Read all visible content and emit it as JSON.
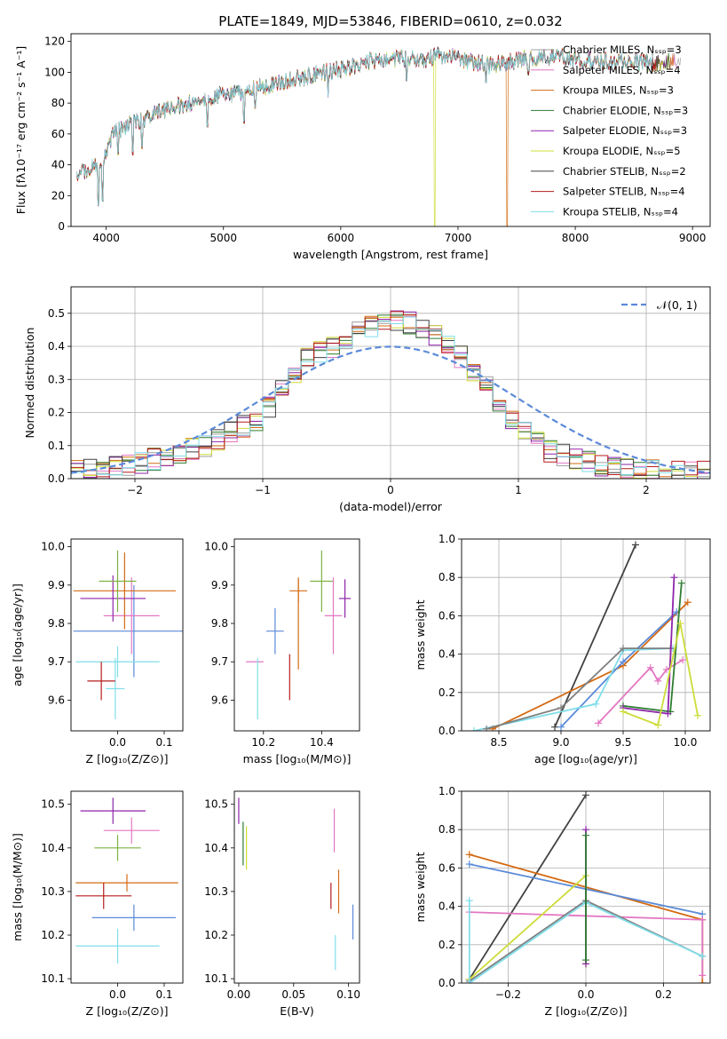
{
  "chart_data": [
    {
      "type": "line",
      "title": "PLATE=1849, MJD=53846, FIBERID=0610, z=0.032",
      "xlabel": "wavelength [Angstrom, rest frame]",
      "ylabel": "Flux [fλ10⁻¹⁷ erg cm⁻² s⁻¹ A⁻¹]",
      "xlim": [
        3700,
        9150
      ],
      "ylim": [
        0,
        125
      ],
      "xticks": [
        4000,
        5000,
        6000,
        7000,
        8000,
        9000
      ],
      "yticks": [
        0,
        20,
        40,
        60,
        80,
        100,
        120
      ],
      "legend_position": "upper right",
      "series": [
        {
          "name": "Chabrier MILES, Nₛₛₚ=3",
          "color": "#9e9e9e"
        },
        {
          "name": "Salpeter MILES, Nₛₛₚ=4",
          "color": "#e377c2"
        },
        {
          "name": "Kroupa MILES, Nₛₛₚ=3",
          "color": "#d46b14"
        },
        {
          "name": "Chabrier ELODIE, Nₛₛₚ=3",
          "color": "#2e7d32"
        },
        {
          "name": "Salpeter ELODIE, Nₛₛₚ=3",
          "color": "#8e24aa"
        },
        {
          "name": "Kroupa ELODIE, Nₛₛₚ=5",
          "color": "#cddc39"
        },
        {
          "name": "Chabrier STELIB, Nₛₛₚ=2",
          "color": "#424242"
        },
        {
          "name": "Salpeter STELIB, Nₛₛₚ=4",
          "color": "#b71c1c"
        },
        {
          "name": "Kroupa STELIB, Nₛₛₚ=4",
          "color": "#80deea"
        }
      ],
      "spectrum_anchor": {
        "x": [
          3750,
          3800,
          3850,
          3900,
          3950,
          4000,
          4050,
          4100,
          4150,
          4200,
          4300,
          4400,
          4500,
          4600,
          4700,
          4800,
          4900,
          5000,
          5100,
          5200,
          5300,
          5400,
          5500,
          5600,
          5700,
          5800,
          5900,
          6000,
          6100,
          6200,
          6300,
          6400,
          6500,
          6600,
          6700,
          6800,
          6900,
          7000,
          7100,
          7200,
          7300,
          7400,
          7500,
          7600,
          7700,
          7800,
          7900,
          8000,
          8100,
          8200,
          8300,
          8400,
          8500,
          8600,
          8700,
          8800,
          8900
        ],
        "y": [
          30,
          35,
          38,
          40,
          36,
          50,
          58,
          62,
          64,
          66,
          68,
          72,
          76,
          78,
          80,
          82,
          84,
          85,
          86,
          87,
          90,
          92,
          94,
          96,
          97,
          99,
          100,
          102,
          104,
          106,
          108,
          108,
          109,
          110,
          108,
          110,
          111,
          110,
          107,
          106,
          104,
          106,
          108,
          109,
          110,
          110,
          110,
          108,
          108,
          106,
          107,
          107,
          107,
          106,
          106,
          107,
          107
        ],
        "dips": [
          {
            "x": 3934,
            "y": 15
          },
          {
            "x": 3969,
            "y": 18
          },
          {
            "x": 4101,
            "y": 48
          },
          {
            "x": 4227,
            "y": 48
          },
          {
            "x": 4305,
            "y": 52
          },
          {
            "x": 4861,
            "y": 66
          },
          {
            "x": 5175,
            "y": 68
          },
          {
            "x": 5270,
            "y": 78
          },
          {
            "x": 5892,
            "y": 85
          },
          {
            "x": 6563,
            "y": 96
          },
          {
            "x": 6800,
            "y": 0
          },
          {
            "x": 7240,
            "y": 95
          },
          {
            "x": 7420,
            "y": 0
          },
          {
            "x": 7600,
            "y": 100
          }
        ]
      }
    },
    {
      "type": "bar",
      "xlabel": "(data-model)/error",
      "ylabel": "Normed distribution",
      "xlim": [
        -2.5,
        2.5
      ],
      "ylim": [
        0,
        0.58
      ],
      "xticks": [
        -2,
        -1,
        0,
        1,
        2
      ],
      "yticks": [
        0.0,
        0.1,
        0.2,
        0.3,
        0.4,
        0.5
      ],
      "legend": "𝒩(0, 1)",
      "legend_position": "upper right",
      "normal_curve": {
        "mean": 0,
        "sigma": 1,
        "color": "#5b8ad8"
      },
      "bin_width": 0.1,
      "colors": [
        "#9e9e9e",
        "#e377c2",
        "#d46b14",
        "#2e7d32",
        "#8e24aa",
        "#cddc39",
        "#424242",
        "#b71c1c",
        "#80deea"
      ],
      "histogram_base": [
        0.02,
        0.03,
        0.03,
        0.035,
        0.04,
        0.05,
        0.06,
        0.07,
        0.08,
        0.09,
        0.1,
        0.12,
        0.14,
        0.16,
        0.18,
        0.22,
        0.28,
        0.32,
        0.36,
        0.38,
        0.4,
        0.42,
        0.44,
        0.46,
        0.47,
        0.48,
        0.47,
        0.45,
        0.43,
        0.4,
        0.37,
        0.33,
        0.28,
        0.22,
        0.18,
        0.14,
        0.11,
        0.08,
        0.07,
        0.06,
        0.05,
        0.04,
        0.035,
        0.03,
        0.03,
        0.025,
        0.02,
        0.02,
        0.02,
        0.02
      ]
    },
    {
      "type": "scatter",
      "xlabel": "Z [log₁₀(Z/Z⊙)]",
      "ylabel": "age  [log₁₀(age/yr)]",
      "xlim": [
        -0.1,
        0.14
      ],
      "ylim": [
        9.52,
        10.02
      ],
      "xticks": [
        0.0,
        0.1
      ],
      "yticks": [
        9.6,
        9.7,
        9.8,
        9.9,
        10.0
      ],
      "points": [
        {
          "x": -0.005,
          "y": 9.63,
          "xerr": 0.02,
          "yerr": 0.08,
          "color": "#80deea"
        },
        {
          "x": 0.035,
          "y": 9.78,
          "xerr": 0.13,
          "yerr": 0.12,
          "color": "#5b8ad8"
        },
        {
          "x": 0.03,
          "y": 9.82,
          "xerr": 0.06,
          "yerr": 0.1,
          "color": "#e377c2"
        },
        {
          "x": 0.015,
          "y": 9.885,
          "xerr": 0.11,
          "yerr": 0.1,
          "color": "#d46b14"
        },
        {
          "x": -0.01,
          "y": 9.865,
          "xerr": 0.07,
          "yerr": 0.06,
          "color": "#8e24aa"
        },
        {
          "x": 0.0,
          "y": 9.91,
          "xerr": 0.04,
          "yerr": 0.08,
          "color": "#7cb342"
        },
        {
          "x": 0.0,
          "y": 9.7,
          "xerr": 0.09,
          "yerr": 0.04,
          "color": "#80deea"
        },
        {
          "x": -0.035,
          "y": 9.65,
          "xerr": 0.03,
          "yerr": 0.05,
          "color": "#b71c1c"
        }
      ]
    },
    {
      "type": "scatter",
      "xlabel": "mass [log₁₀(M/M⊙)]",
      "xlim": [
        10.1,
        10.53
      ],
      "ylim": [
        9.52,
        10.02
      ],
      "xticks": [
        10.2,
        10.4
      ],
      "yticks": [
        9.6,
        9.7,
        9.8,
        9.9,
        10.0
      ],
      "points": [
        {
          "x": 10.17,
          "y": 9.7,
          "xerr": 0.03,
          "yerr": 0.0,
          "color": "#e377c2"
        },
        {
          "x": 10.18,
          "y": 9.63,
          "xerr": 0.0,
          "yerr": 0.08,
          "color": "#80deea"
        },
        {
          "x": 10.24,
          "y": 9.78,
          "xerr": 0.03,
          "yerr": 0.06,
          "color": "#5b8ad8"
        },
        {
          "x": 10.29,
          "y": 9.66,
          "xerr": 0.0,
          "yerr": 0.06,
          "color": "#b71c1c"
        },
        {
          "x": 10.32,
          "y": 9.885,
          "xerr": 0.03,
          "yerr": 0.03,
          "color": "#d46b14"
        },
        {
          "x": 10.32,
          "y": 9.8,
          "xerr": 0.0,
          "yerr": 0.12,
          "color": "#d46b14"
        },
        {
          "x": 10.4,
          "y": 9.91,
          "xerr": 0.04,
          "yerr": 0.08,
          "color": "#7cb342"
        },
        {
          "x": 10.44,
          "y": 9.82,
          "xerr": 0.03,
          "yerr": 0.1,
          "color": "#e377c2"
        },
        {
          "x": 10.48,
          "y": 9.865,
          "xerr": 0.02,
          "yerr": 0.05,
          "color": "#8e24aa"
        }
      ]
    },
    {
      "type": "line",
      "xlabel": "age  [log₁₀(age/yr)]",
      "ylabel": "mass weight",
      "xlim": [
        8.2,
        10.2
      ],
      "ylim": [
        0,
        1
      ],
      "xticks": [
        8.5,
        9.0,
        9.5,
        10.0
      ],
      "yticks": [
        0.0,
        0.2,
        0.4,
        0.6,
        0.8,
        1.0
      ],
      "series": [
        {
          "color": "#424242",
          "x": [
            8.95,
            9.6
          ],
          "y": [
            0.02,
            0.97
          ]
        },
        {
          "color": "#d46b14",
          "x": [
            8.45,
            9.5,
            10.02
          ],
          "y": [
            0.01,
            0.34,
            0.67
          ]
        },
        {
          "color": "#5b8ad8",
          "x": [
            9.0,
            9.5,
            9.93
          ],
          "y": [
            0.02,
            0.36,
            0.62
          ]
        },
        {
          "color": "#80deea",
          "x": [
            8.3,
            9.28,
            9.5,
            9.9
          ],
          "y": [
            0.0,
            0.14,
            0.42,
            0.43
          ]
        },
        {
          "color": "#7f7f7f",
          "x": [
            8.4,
            9.0,
            9.5,
            9.88
          ],
          "y": [
            0.01,
            0.12,
            0.43,
            0.43
          ]
        },
        {
          "color": "#e377c2",
          "x": [
            9.3,
            9.72,
            9.78,
            9.85,
            9.98
          ],
          "y": [
            0.04,
            0.33,
            0.26,
            0.32,
            0.37
          ]
        },
        {
          "color": "#2e7d32",
          "x": [
            9.5,
            9.88,
            9.97
          ],
          "y": [
            0.13,
            0.1,
            0.77
          ]
        },
        {
          "color": "#8e24aa",
          "x": [
            9.5,
            9.86,
            9.91
          ],
          "y": [
            0.12,
            0.09,
            0.8
          ]
        },
        {
          "color": "#cddc39",
          "x": [
            9.5,
            9.78,
            9.96,
            10.1
          ],
          "y": [
            0.1,
            0.03,
            0.56,
            0.08
          ]
        }
      ]
    },
    {
      "type": "scatter",
      "xlabel": "Z [log₁₀(Z/Z⊙)]",
      "ylabel": "mass [log₁₀(M/M⊙)]",
      "xlim": [
        -0.1,
        0.14
      ],
      "ylim": [
        10.09,
        10.53
      ],
      "xticks": [
        0.0,
        0.1
      ],
      "yticks": [
        10.1,
        10.2,
        10.3,
        10.4,
        10.5
      ],
      "points": [
        {
          "x": -0.01,
          "y": 10.485,
          "xerr": 0.07,
          "yerr": 0.03,
          "color": "#8e24aa"
        },
        {
          "x": 0.03,
          "y": 10.44,
          "xerr": 0.06,
          "yerr": 0.03,
          "color": "#e377c2"
        },
        {
          "x": 0.0,
          "y": 10.4,
          "xerr": 0.05,
          "yerr": 0.03,
          "color": "#7cb342"
        },
        {
          "x": 0.02,
          "y": 10.32,
          "xerr": 0.11,
          "yerr": 0.02,
          "color": "#d46b14"
        },
        {
          "x": -0.03,
          "y": 10.29,
          "xerr": 0.06,
          "yerr": 0.03,
          "color": "#b71c1c"
        },
        {
          "x": 0.035,
          "y": 10.24,
          "xerr": 0.09,
          "yerr": 0.03,
          "color": "#5b8ad8"
        },
        {
          "x": 0.0,
          "y": 10.175,
          "xerr": 0.09,
          "yerr": 0.04,
          "color": "#80deea"
        }
      ]
    },
    {
      "type": "scatter",
      "xlabel": "E(B-V)",
      "xlim": [
        -0.004,
        0.11
      ],
      "ylim": [
        10.09,
        10.53
      ],
      "xticks": [
        0.0,
        0.05,
        0.1
      ],
      "yticks": [
        10.1,
        10.2,
        10.3,
        10.4,
        10.5
      ],
      "points": [
        {
          "x": 0.0,
          "y": 10.485,
          "xerr": 0.0,
          "yerr": 0.03,
          "color": "#8e24aa"
        },
        {
          "x": 0.004,
          "y": 10.41,
          "xerr": 0.0,
          "yerr": 0.05,
          "color": "#2e7d32"
        },
        {
          "x": 0.007,
          "y": 10.4,
          "xerr": 0.0,
          "yerr": 0.05,
          "color": "#cddc39"
        },
        {
          "x": 0.087,
          "y": 10.44,
          "xerr": 0.0,
          "yerr": 0.05,
          "color": "#e377c2"
        },
        {
          "x": 0.091,
          "y": 10.3,
          "xerr": 0.0,
          "yerr": 0.05,
          "color": "#d46b14"
        },
        {
          "x": 0.084,
          "y": 10.29,
          "xerr": 0.0,
          "yerr": 0.03,
          "color": "#b71c1c"
        },
        {
          "x": 0.104,
          "y": 10.23,
          "xerr": 0.0,
          "yerr": 0.04,
          "color": "#5b8ad8"
        },
        {
          "x": 0.088,
          "y": 10.16,
          "xerr": 0.0,
          "yerr": 0.04,
          "color": "#80deea"
        }
      ]
    },
    {
      "type": "line",
      "xlabel": "Z [log₁₀(Z/Z⊙)]",
      "ylabel": "mass weight",
      "xlim": [
        -0.32,
        0.32
      ],
      "ylim": [
        0,
        1
      ],
      "xticks": [
        -0.2,
        0.0,
        0.2
      ],
      "yticks": [
        0.0,
        0.2,
        0.4,
        0.6,
        0.8,
        1.0
      ],
      "series": [
        {
          "color": "#424242",
          "x": [
            -0.3,
            0.0
          ],
          "y": [
            0.02,
            0.98
          ]
        },
        {
          "color": "#d46b14",
          "x": [
            -0.3,
            0.3,
            0.3
          ],
          "y": [
            0.67,
            0.33,
            0.0
          ]
        },
        {
          "color": "#5b8ad8",
          "x": [
            -0.3,
            0.3
          ],
          "y": [
            0.62,
            0.36
          ]
        },
        {
          "color": "#e377c2",
          "x": [
            -0.3,
            0.3,
            0.3
          ],
          "y": [
            0.37,
            0.33,
            0.04
          ]
        },
        {
          "color": "#cddc39",
          "x": [
            -0.3,
            0.0,
            0.0
          ],
          "y": [
            0.02,
            0.56,
            0.1
          ]
        },
        {
          "color": "#7f7f7f",
          "x": [
            -0.3,
            0.0,
            0.3
          ],
          "y": [
            0.01,
            0.43,
            0.14
          ]
        },
        {
          "color": "#80deea",
          "x": [
            -0.3,
            -0.3,
            0.0,
            0.3
          ],
          "y": [
            0.43,
            0.0,
            0.42,
            0.14
          ]
        },
        {
          "color": "#8e24aa",
          "x": [
            0.0,
            0.0
          ],
          "y": [
            0.8,
            0.1
          ]
        },
        {
          "color": "#2e7d32",
          "x": [
            0.0,
            0.0
          ],
          "y": [
            0.77,
            0.12
          ]
        }
      ]
    }
  ]
}
